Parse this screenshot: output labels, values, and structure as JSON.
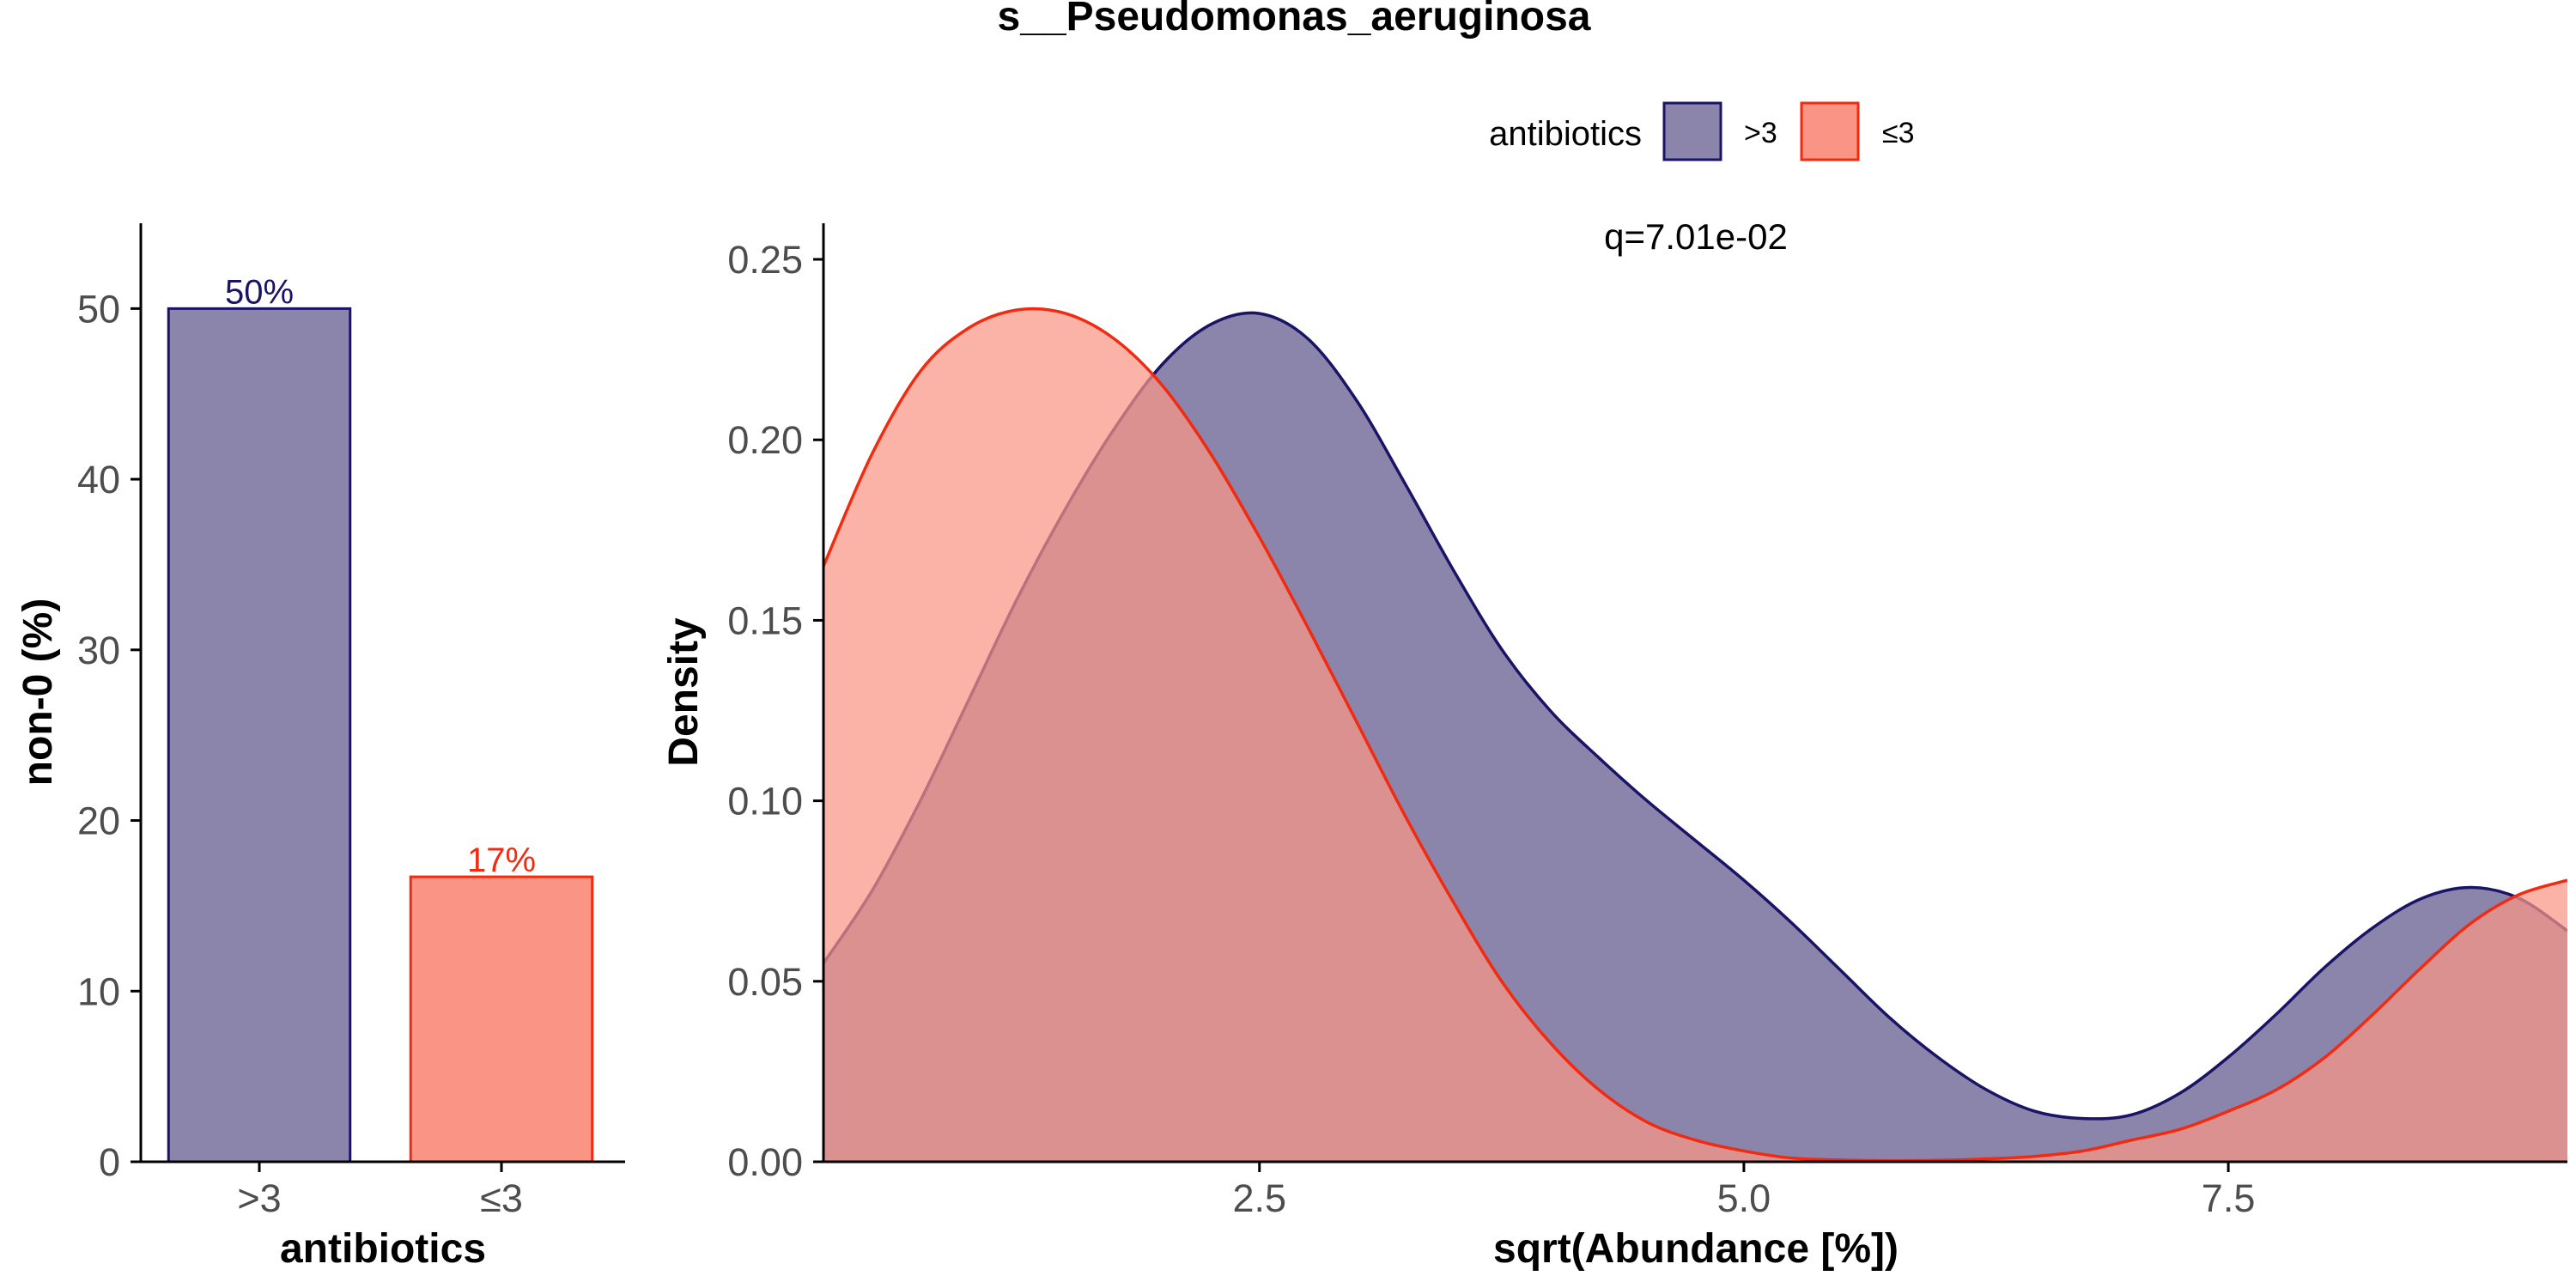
{
  "title": "s__Pseudomonas_aeruginosa",
  "legend": {
    "title": "antibiotics",
    "placement": "top",
    "items": [
      {
        "label": ">3",
        "fill": "#8b84ab",
        "stroke": "#1a1466"
      },
      {
        "label": "≤3",
        "fill": "#fa9585",
        "stroke": "#f22a0f"
      }
    ]
  },
  "colors": {
    "gt3_fill": "#8b84ab",
    "gt3_line": "#1a1466",
    "le3_fill": "#fa9585",
    "le3_line": "#f22a0f",
    "overlap_fill": "#c15659",
    "axis": "#000000",
    "tick_text": "#4d4d4d"
  },
  "chart_data": [
    {
      "type": "bar",
      "title": "",
      "xlabel": "antibiotics",
      "ylabel": "non-0 (%)",
      "categories": [
        ">3",
        "≤3"
      ],
      "values": [
        50,
        16.7
      ],
      "data_labels": [
        "50%",
        "17%"
      ],
      "ylim": [
        0,
        55
      ],
      "yticks": [
        0,
        10,
        20,
        30,
        40,
        50
      ],
      "yticklabels": [
        "0",
        "10",
        "20",
        "30",
        "40",
        "50"
      ],
      "grid": false
    },
    {
      "type": "area",
      "title": "",
      "xlabel": "sqrt(Abundance [%])",
      "ylabel": "Density",
      "xlim": [
        0.25,
        9.25
      ],
      "ylim": [
        0,
        0.26
      ],
      "xticks": [
        2.5,
        5.0,
        7.5
      ],
      "xticklabels": [
        "2.5",
        "5.0",
        "7.5"
      ],
      "yticks": [
        0,
        0.05,
        0.1,
        0.15,
        0.2,
        0.25
      ],
      "yticklabels": [
        "0.00",
        "0.05",
        "0.10",
        "0.15",
        "0.20",
        "0.25"
      ],
      "annotation": "q=7.01e-02",
      "grid": false,
      "x": [
        0.25,
        0.5,
        0.75,
        1.0,
        1.25,
        1.5,
        1.75,
        2.0,
        2.25,
        2.5,
        2.75,
        3.0,
        3.25,
        3.5,
        3.75,
        4.0,
        4.25,
        4.5,
        4.75,
        5.0,
        5.25,
        5.5,
        5.75,
        6.0,
        6.25,
        6.5,
        6.75,
        7.0,
        7.25,
        7.5,
        7.75,
        8.0,
        8.25,
        8.5,
        8.75,
        9.0,
        9.25
      ],
      "series": [
        {
          "name": ">3",
          "values": [
            0.055,
            0.075,
            0.1,
            0.128,
            0.156,
            0.181,
            0.203,
            0.221,
            0.232,
            0.235,
            0.228,
            0.211,
            0.188,
            0.164,
            0.142,
            0.125,
            0.112,
            0.1,
            0.089,
            0.078,
            0.066,
            0.053,
            0.04,
            0.029,
            0.02,
            0.014,
            0.012,
            0.013,
            0.019,
            0.029,
            0.041,
            0.054,
            0.065,
            0.073,
            0.076,
            0.073,
            0.064
          ]
        },
        {
          "name": "≤3",
          "values": [
            0.165,
            0.196,
            0.219,
            0.231,
            0.236,
            0.235,
            0.228,
            0.215,
            0.196,
            0.173,
            0.148,
            0.122,
            0.096,
            0.072,
            0.05,
            0.033,
            0.02,
            0.011,
            0.006,
            0.003,
            0.001,
            0.0005,
            0.0003,
            0.0004,
            0.0008,
            0.0015,
            0.003,
            0.006,
            0.009,
            0.014,
            0.02,
            0.029,
            0.041,
            0.054,
            0.066,
            0.074,
            0.078
          ]
        }
      ]
    }
  ]
}
